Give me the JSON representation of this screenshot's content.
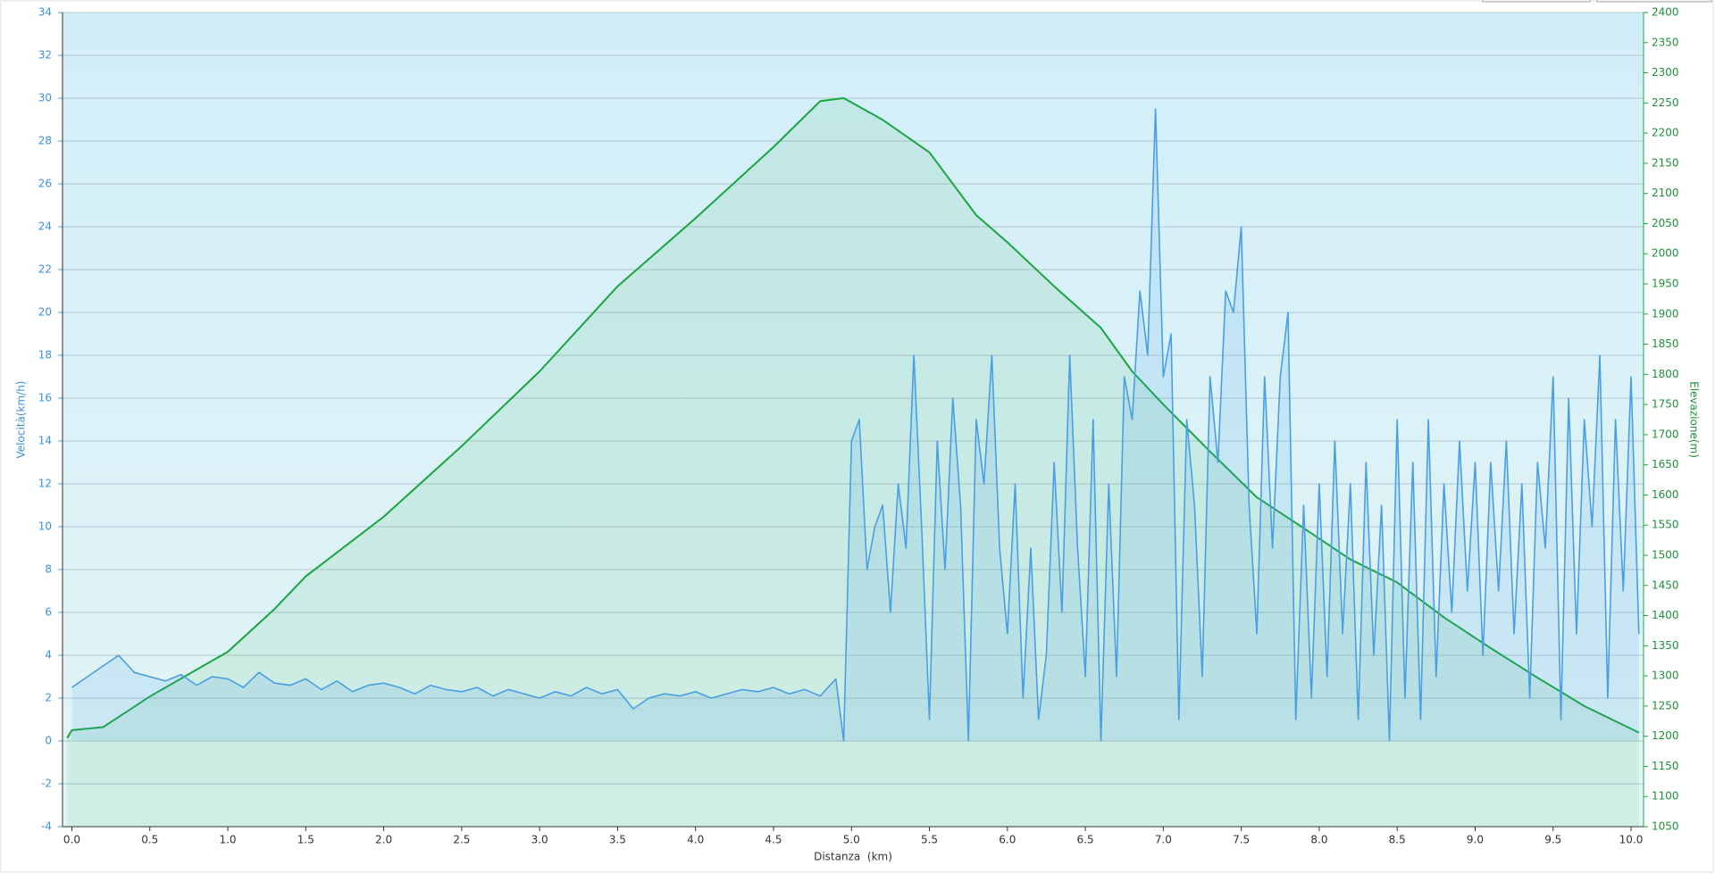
{
  "chart_data": {
    "type": "line",
    "xlabel": "Distanza  (km)",
    "ylabel": "Velocità(km/h)",
    "y2label": "Elevazione(m)",
    "xlim": [
      -0.06,
      10.08
    ],
    "xticks": [
      {
        "value": 0,
        "label": "0.0"
      },
      0.5,
      {
        "value": 1,
        "label": "1.0"
      },
      1.5,
      {
        "value": 2,
        "label": "2.0"
      },
      2.5,
      {
        "value": 3,
        "label": "3.0"
      },
      3.5,
      {
        "value": 4,
        "label": "4.0"
      },
      4.5,
      {
        "value": 5,
        "label": "5.0"
      },
      5.5,
      {
        "value": 6,
        "label": "6.0"
      },
      6.5,
      {
        "value": 7,
        "label": "7.0"
      },
      7.5,
      {
        "value": 8,
        "label": "8.0"
      },
      8.5,
      {
        "value": 9,
        "label": "9.0"
      },
      9.5,
      {
        "value": 10,
        "label": "10.0"
      }
    ],
    "ylim": [
      -4,
      34
    ],
    "yticks": [
      -4,
      -2,
      0,
      2,
      4,
      6,
      8,
      10,
      12,
      14,
      16,
      18,
      20,
      22,
      24,
      26,
      28,
      30,
      32,
      34
    ],
    "y2lim": [
      1050,
      2400
    ],
    "y2ticks": [
      1050,
      1100,
      1150,
      1200,
      1250,
      1300,
      1350,
      1400,
      1450,
      1500,
      1550,
      1600,
      1650,
      1700,
      1750,
      1800,
      1850,
      1900,
      1950,
      2000,
      2050,
      2100,
      2150,
      2200,
      2250,
      2300,
      2350,
      2400
    ],
    "grid": true,
    "series": [
      {
        "color": "#4a9fe3",
        "axis": "y",
        "x": [
          0.0,
          0.1,
          0.2,
          0.3,
          0.4,
          0.5,
          0.6,
          0.7,
          0.8,
          0.9,
          1.0,
          1.1,
          1.2,
          1.3,
          1.4,
          1.5,
          1.6,
          1.7,
          1.8,
          1.9,
          2.0,
          2.1,
          2.2,
          2.3,
          2.4,
          2.5,
          2.6,
          2.7,
          2.8,
          2.9,
          3.0,
          3.1,
          3.2,
          3.3,
          3.4,
          3.5,
          3.6,
          3.7,
          3.8,
          3.9,
          4.0,
          4.1,
          4.2,
          4.3,
          4.4,
          4.5,
          4.6,
          4.7,
          4.8,
          4.9,
          4.95,
          5.0,
          5.05,
          5.1,
          5.15,
          5.2,
          5.25,
          5.3,
          5.35,
          5.4,
          5.45,
          5.5,
          5.55,
          5.6,
          5.65,
          5.7,
          5.75,
          5.8,
          5.85,
          5.9,
          5.95,
          6.0,
          6.05,
          6.1,
          6.15,
          6.2,
          6.25,
          6.3,
          6.35,
          6.4,
          6.45,
          6.5,
          6.55,
          6.6,
          6.65,
          6.7,
          6.75,
          6.8,
          6.85,
          6.9,
          6.95,
          7.0,
          7.05,
          7.1,
          7.15,
          7.2,
          7.25,
          7.3,
          7.35,
          7.4,
          7.45,
          7.5,
          7.55,
          7.6,
          7.65,
          7.7,
          7.75,
          7.8,
          7.85,
          7.9,
          7.95,
          8.0,
          8.05,
          8.1,
          8.15,
          8.2,
          8.25,
          8.3,
          8.35,
          8.4,
          8.45,
          8.5,
          8.55,
          8.6,
          8.65,
          8.7,
          8.75,
          8.8,
          8.85,
          8.9,
          8.95,
          9.0,
          9.05,
          9.1,
          9.15,
          9.2,
          9.25,
          9.3,
          9.35,
          9.4,
          9.45,
          9.5,
          9.55,
          9.6,
          9.65,
          9.7,
          9.75,
          9.8,
          9.85,
          9.9,
          9.95,
          10.0,
          10.05
        ],
        "values": [
          2.5,
          3.0,
          3.5,
          4.0,
          3.2,
          3.0,
          2.8,
          3.1,
          2.6,
          3.0,
          2.9,
          2.5,
          3.2,
          2.7,
          2.6,
          2.9,
          2.4,
          2.8,
          2.3,
          2.6,
          2.7,
          2.5,
          2.2,
          2.6,
          2.4,
          2.3,
          2.5,
          2.1,
          2.4,
          2.2,
          2.0,
          2.3,
          2.1,
          2.5,
          2.2,
          2.4,
          1.5,
          2.0,
          2.2,
          2.1,
          2.3,
          2.0,
          2.2,
          2.4,
          2.3,
          2.5,
          2.2,
          2.4,
          2.1,
          2.9,
          0,
          14,
          15,
          8,
          10,
          11,
          6,
          12,
          9,
          18,
          10,
          1,
          14,
          8,
          16,
          11,
          0,
          15,
          12,
          18,
          9,
          5,
          12,
          2,
          9,
          1,
          4,
          13,
          6,
          18,
          9,
          3,
          15,
          0,
          12,
          3,
          17,
          15,
          21,
          18,
          29.5,
          17,
          19,
          1,
          15,
          11,
          3,
          17,
          13,
          21,
          20,
          24,
          11,
          5,
          17,
          9,
          17,
          20,
          1,
          11,
          2,
          12,
          3,
          14,
          5,
          12,
          1,
          13,
          4,
          11,
          0,
          15,
          2,
          13,
          1,
          15,
          3,
          12,
          6,
          14,
          7,
          13,
          4,
          13,
          7,
          14,
          5,
          12,
          2,
          13,
          9,
          17,
          1,
          16,
          5,
          15,
          10,
          18,
          2,
          15,
          7,
          17,
          5
        ]
      },
      {
        "color": "#1aa540",
        "axis": "y2",
        "x": [
          -0.03,
          0.0,
          0.2,
          0.5,
          1.0,
          1.3,
          1.5,
          2.0,
          2.5,
          3.0,
          3.5,
          4.0,
          4.5,
          4.8,
          4.95,
          5.2,
          5.5,
          5.8,
          6.0,
          6.3,
          6.6,
          6.8,
          7.0,
          7.3,
          7.6,
          7.9,
          8.2,
          8.5,
          8.8,
          9.1,
          9.4,
          9.7,
          10.05
        ],
        "values": [
          1197,
          1210,
          1215,
          1266,
          1340,
          1411,
          1465,
          1564,
          1681,
          1805,
          1946,
          2059,
          2177,
          2253,
          2258,
          2222,
          2168,
          2064,
          2019,
          1946,
          1877,
          1805,
          1750,
          1672,
          1596,
          1545,
          1493,
          1455,
          1397,
          1346,
          1297,
          1250,
          1206
        ]
      }
    ]
  }
}
